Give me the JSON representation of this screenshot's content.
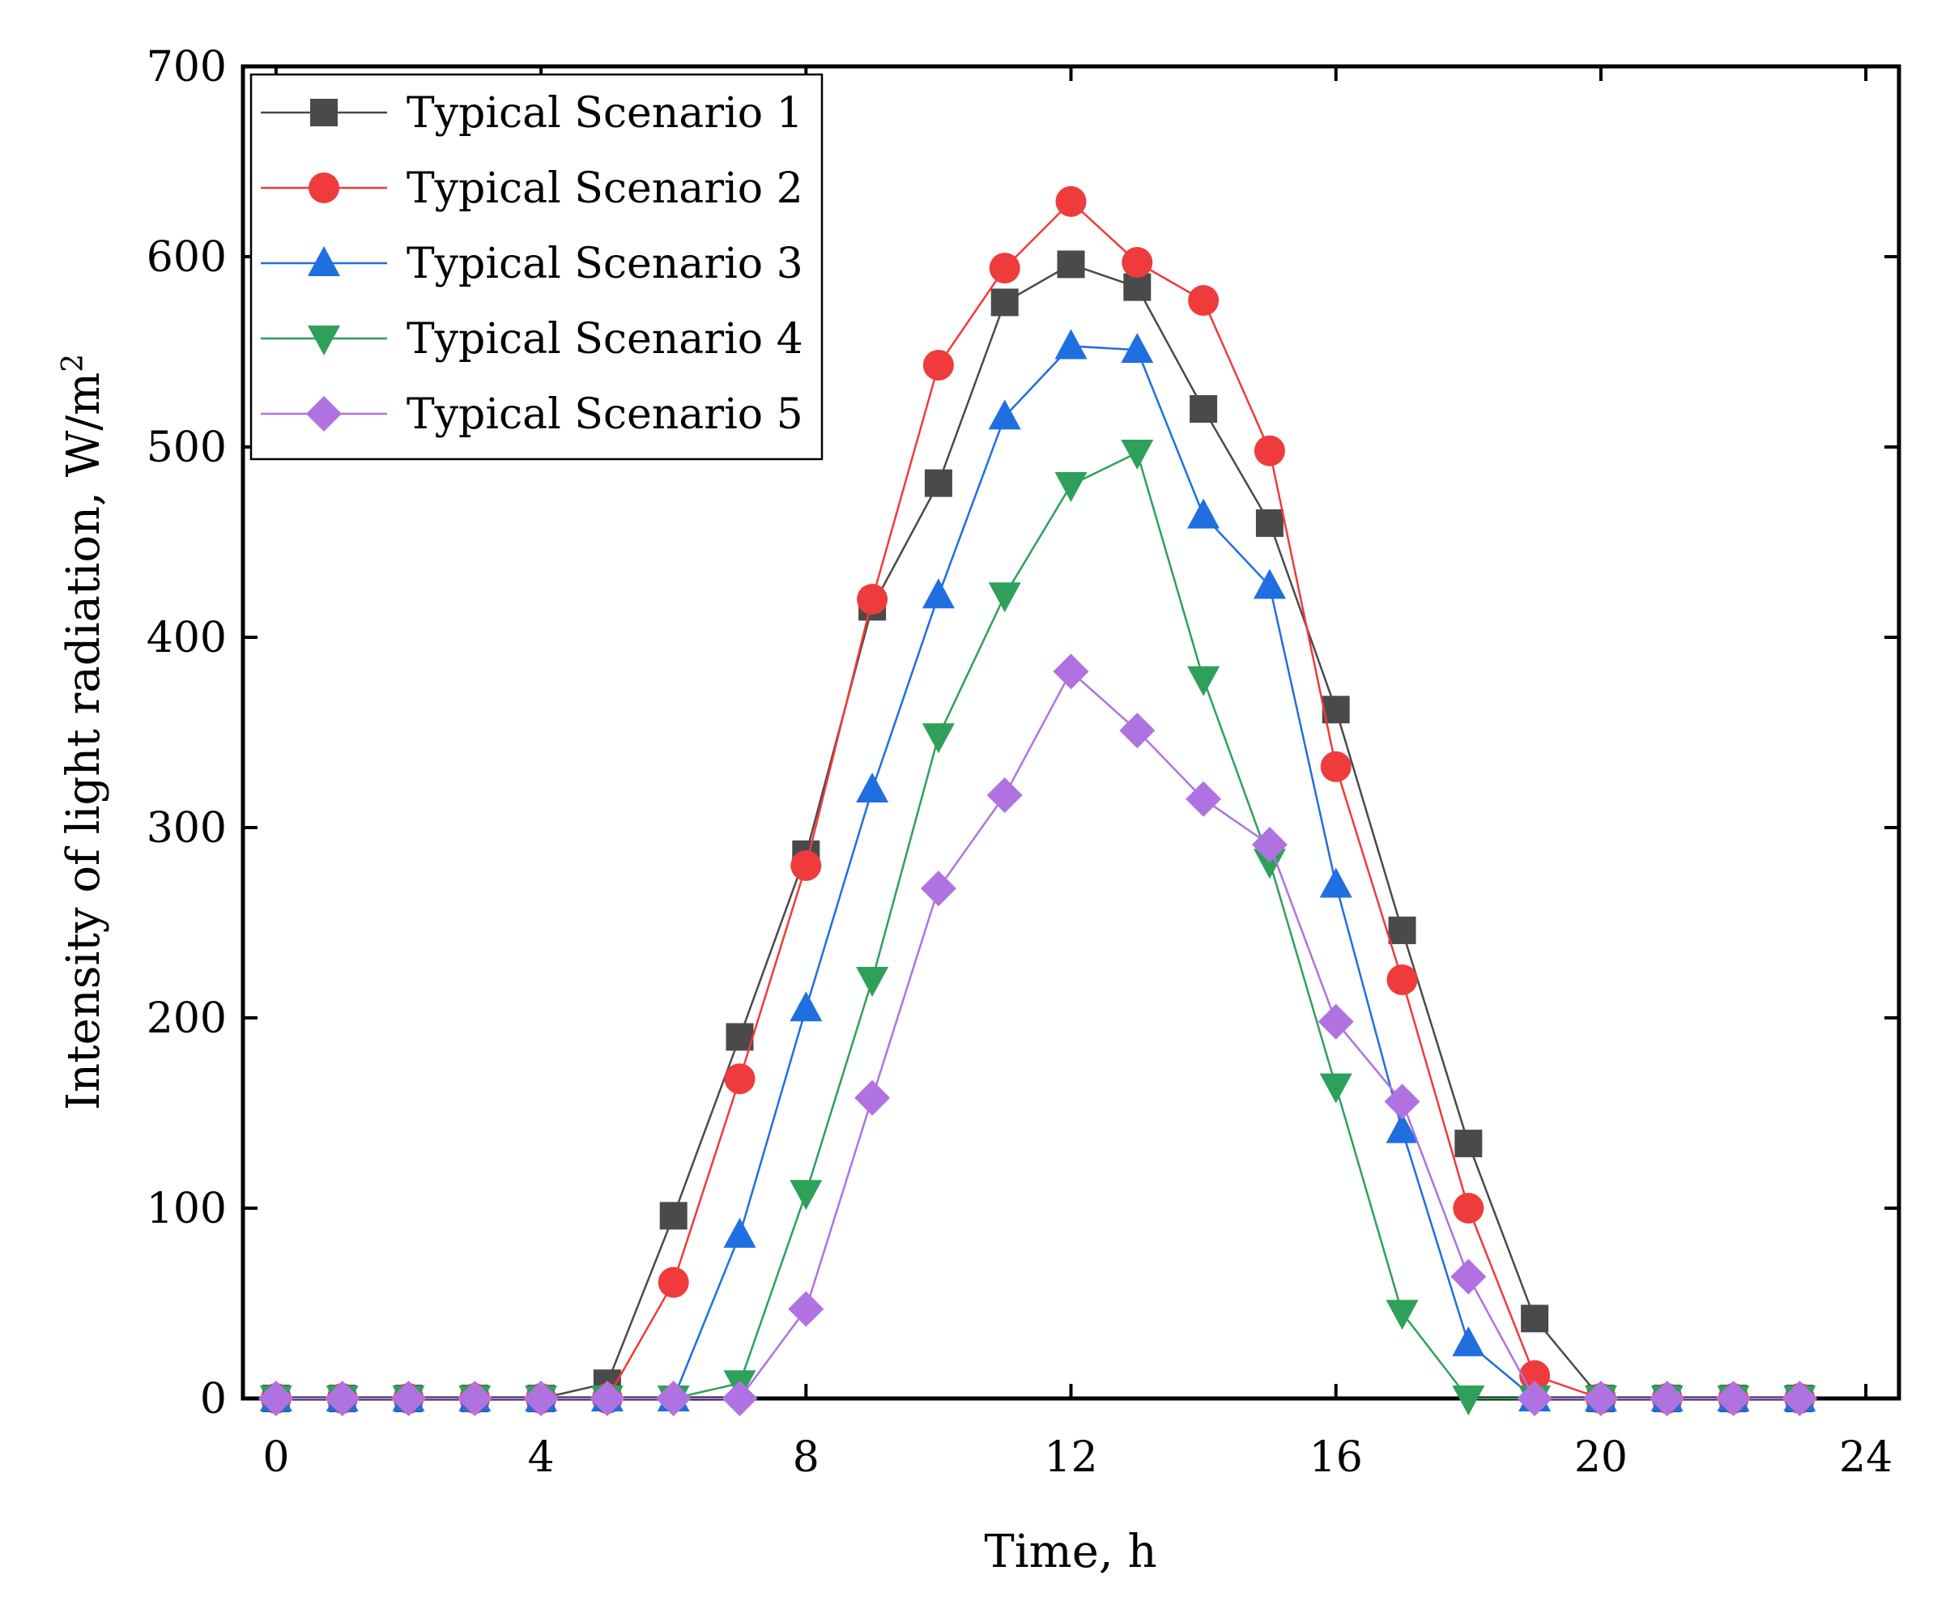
{
  "chart_data": {
    "type": "line",
    "title": "",
    "xlabel": "Time, h",
    "ylabel": "Intensity of light radiation, W/m",
    "ylabel_superscript": "2",
    "xlim": [
      -0.5,
      24.5
    ],
    "ylim": [
      0,
      700
    ],
    "xticks": [
      0,
      4,
      8,
      12,
      16,
      20,
      24
    ],
    "yticks": [
      0,
      100,
      200,
      300,
      400,
      500,
      600,
      700
    ],
    "grid": false,
    "legend_position": "top-left",
    "x": [
      0,
      1,
      2,
      3,
      4,
      5,
      6,
      7,
      8,
      9,
      10,
      11,
      12,
      13,
      14,
      15,
      16,
      17,
      18,
      19,
      20,
      21,
      22,
      23
    ],
    "series": [
      {
        "name": "Typical Scenario 1",
        "color": "#4a4a4a",
        "marker": "square",
        "values": [
          0,
          0,
          0,
          0,
          0,
          8,
          96,
          190,
          286,
          416,
          481,
          576,
          596,
          584,
          520,
          460,
          362,
          246,
          134,
          42,
          0,
          0,
          0,
          0
        ]
      },
      {
        "name": "Typical Scenario 2",
        "color": "#ef3b3b",
        "marker": "circle",
        "values": [
          0,
          0,
          0,
          0,
          0,
          0,
          61,
          168,
          280,
          420,
          543,
          594,
          629,
          597,
          577,
          498,
          332,
          220,
          100,
          12,
          0,
          0,
          0,
          0
        ]
      },
      {
        "name": "Typical Scenario 3",
        "color": "#1f6fe0",
        "marker": "triangle-up",
        "values": [
          0,
          0,
          0,
          0,
          0,
          0,
          0,
          86,
          205,
          320,
          422,
          516,
          553,
          551,
          464,
          427,
          270,
          141,
          29,
          0,
          0,
          0,
          0,
          0
        ]
      },
      {
        "name": "Typical Scenario 4",
        "color": "#2ea05a",
        "marker": "triangle-down",
        "values": [
          0,
          0,
          0,
          0,
          0,
          0,
          0,
          8,
          108,
          220,
          348,
          422,
          480,
          497,
          378,
          282,
          164,
          45,
          0,
          0,
          0,
          0,
          0,
          0
        ]
      },
      {
        "name": "Typical Scenario 5",
        "color": "#b072e0",
        "marker": "diamond",
        "values": [
          0,
          0,
          0,
          0,
          0,
          0,
          0,
          0,
          47,
          158,
          268,
          317,
          382,
          351,
          315,
          291,
          198,
          156,
          64,
          0,
          0,
          0,
          0,
          0
        ]
      }
    ]
  }
}
